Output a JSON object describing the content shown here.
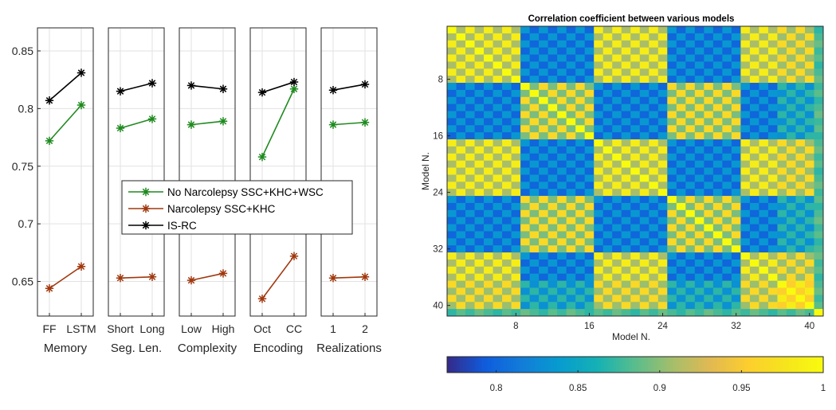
{
  "chart_data": [
    {
      "type": "line",
      "ylim": [
        0.62,
        0.87
      ],
      "yticks": [
        0.65,
        0.7,
        0.75,
        0.8,
        0.85
      ],
      "ytick_labels": [
        "0.65",
        "0.7",
        "0.75",
        "0.8",
        "0.85"
      ],
      "grid": true,
      "legend_position": "center-left overlapping panels",
      "legend": [
        {
          "name": "No Narcolepsy SSC+KHC+WSC",
          "color": "#1f8a1f"
        },
        {
          "name": "Narcolepsy SSC+KHC",
          "color": "#a0380e"
        },
        {
          "name": "IS-RC",
          "color": "#000000"
        }
      ],
      "panels": [
        {
          "xlabel": "Memory",
          "categories": [
            "FF",
            "LSTM"
          ],
          "series": [
            {
              "name": "No Narcolepsy SSC+KHC+WSC",
              "values": [
                0.772,
                0.803
              ]
            },
            {
              "name": "Narcolepsy SSC+KHC",
              "values": [
                0.644,
                0.663
              ]
            },
            {
              "name": "IS-RC",
              "values": [
                0.807,
                0.831
              ]
            }
          ]
        },
        {
          "xlabel": "Seg. Len.",
          "categories": [
            "Short",
            "Long"
          ],
          "series": [
            {
              "name": "No Narcolepsy SSC+KHC+WSC",
              "values": [
                0.783,
                0.791
              ]
            },
            {
              "name": "Narcolepsy SSC+KHC",
              "values": [
                0.653,
                0.654
              ]
            },
            {
              "name": "IS-RC",
              "values": [
                0.815,
                0.822
              ]
            }
          ]
        },
        {
          "xlabel": "Complexity",
          "categories": [
            "Low",
            "High"
          ],
          "series": [
            {
              "name": "No Narcolepsy SSC+KHC+WSC",
              "values": [
                0.786,
                0.789
              ]
            },
            {
              "name": "Narcolepsy SSC+KHC",
              "values": [
                0.651,
                0.657
              ]
            },
            {
              "name": "IS-RC",
              "values": [
                0.82,
                0.817
              ]
            }
          ]
        },
        {
          "xlabel": "Encoding",
          "categories": [
            "Oct",
            "CC"
          ],
          "series": [
            {
              "name": "No Narcolepsy SSC+KHC+WSC",
              "values": [
                0.758,
                0.817
              ]
            },
            {
              "name": "Narcolepsy SSC+KHC",
              "values": [
                0.635,
                0.672
              ]
            },
            {
              "name": "IS-RC",
              "values": [
                0.814,
                0.823
              ]
            }
          ]
        },
        {
          "xlabel": "Realizations",
          "categories": [
            "1",
            "2"
          ],
          "series": [
            {
              "name": "No Narcolepsy SSC+KHC+WSC",
              "values": [
                0.786,
                0.788
              ]
            },
            {
              "name": "Narcolepsy SSC+KHC",
              "values": [
                0.653,
                0.654
              ]
            },
            {
              "name": "IS-RC",
              "values": [
                0.816,
                0.821
              ]
            }
          ]
        }
      ]
    },
    {
      "type": "heatmap",
      "title": "Correlation coefficient between various models",
      "xlabel": "Model N.",
      "ylabel": "Model N.",
      "n": 40,
      "xticks": [
        8,
        16,
        24,
        32,
        40
      ],
      "yticks": [
        8,
        16,
        24,
        32,
        40
      ],
      "xtick_labels": [
        "8",
        "16",
        "24",
        "32",
        "40"
      ],
      "ytick_labels": [
        "8",
        "16",
        "24",
        "32",
        "40"
      ],
      "colorbar": {
        "range": [
          0.77,
          1
        ],
        "ticks": [
          0.8,
          0.85,
          0.9,
          0.95,
          1
        ],
        "tick_labels": [
          "0.8",
          "0.85",
          "0.9",
          "0.95",
          "1"
        ],
        "colormap": "parula",
        "position": "bottom"
      },
      "description_structure": {
        "group_A": [
          1,
          8,
          17,
          24,
          33,
          36
        ],
        "group_B": [
          9,
          16,
          25,
          32
        ],
        "outlier_model": 41
      }
    }
  ]
}
